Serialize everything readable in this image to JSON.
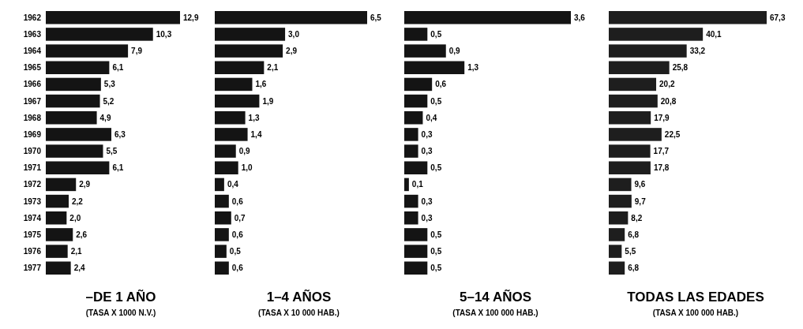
{
  "chart_data": [
    {
      "type": "bar",
      "orientation": "horizontal",
      "title": "–DE 1 AÑO",
      "subtitle": "(TASA X 1000 N.V.)",
      "tick_labels": "y",
      "categories": [
        "1962",
        "1963",
        "1964",
        "1965",
        "1966",
        "1967",
        "1968",
        "1969",
        "1970",
        "1971",
        "1972",
        "1973",
        "1974",
        "1975",
        "1976",
        "1977"
      ],
      "color": "#141414",
      "values": [
        12.9,
        10.3,
        7.9,
        6.1,
        5.3,
        5.2,
        4.9,
        6.3,
        5.5,
        6.1,
        2.9,
        2.2,
        2.0,
        2.6,
        2.1,
        2.4
      ],
      "value_labels": [
        "12,9",
        "10,3",
        "7,9",
        "6,1",
        "5,3",
        "5,2",
        "4,9",
        "6,3",
        "5,5",
        "6,1",
        "2,9",
        "2,2",
        "2,0",
        "2,6",
        "2,1",
        "2,4"
      ]
    },
    {
      "type": "bar",
      "orientation": "horizontal",
      "title": "1–4 AÑOS",
      "subtitle": "(TASA X 10 000 HAB.)",
      "tick_labels": false,
      "categories": [
        null,
        null,
        null,
        null,
        null,
        null,
        null,
        null,
        null,
        null,
        null,
        null,
        null,
        null,
        null,
        null
      ],
      "color": "#141414",
      "values": [
        6.5,
        3.0,
        2.9,
        2.1,
        1.6,
        1.9,
        1.3,
        1.4,
        0.9,
        1.0,
        0.4,
        0.6,
        0.7,
        0.6,
        0.5,
        0.6
      ],
      "value_labels": [
        "6,5",
        "3,0",
        "2,9",
        "2,1",
        "1,6",
        "1,9",
        "1,3",
        "1,4",
        "0,9",
        "1,0",
        "0,4",
        "0,6",
        "0,7",
        "0,6",
        "0,5",
        "0,6"
      ]
    },
    {
      "type": "bar",
      "orientation": "horizontal",
      "title": "5–14 AÑOS",
      "subtitle": "(TASA X 100 000 HAB.)",
      "tick_labels": false,
      "categories": [
        null,
        null,
        null,
        null,
        null,
        null,
        null,
        null,
        null,
        null,
        null,
        null,
        null,
        null,
        null,
        null
      ],
      "color": "#141414",
      "values": [
        3.6,
        0.5,
        0.9,
        1.3,
        0.6,
        0.5,
        0.4,
        0.3,
        0.3,
        0.5,
        0.1,
        0.3,
        0.3,
        0.5,
        0.5,
        0.5
      ],
      "value_labels": [
        "3,6",
        "0,5",
        "0,9",
        "1,3",
        "0,6",
        "0,5",
        "0,4",
        "0,3",
        "0,3",
        "0,5",
        "0,1",
        "0,3",
        "0,3",
        "0,5",
        "0,5",
        "0,5"
      ]
    },
    {
      "type": "bar",
      "orientation": "horizontal",
      "title": "TODAS LAS EDADES",
      "subtitle": "(TASA X 100 000 HAB.)",
      "tick_labels": false,
      "categories": [
        null,
        null,
        null,
        null,
        null,
        null,
        null,
        null,
        null,
        null,
        null,
        null,
        null,
        null,
        null,
        null
      ],
      "color": "#1e1e1e",
      "values": [
        67.3,
        40.1,
        33.2,
        25.8,
        20.2,
        20.8,
        17.9,
        22.5,
        17.7,
        17.8,
        9.6,
        9.7,
        8.2,
        6.8,
        5.5,
        6.8
      ],
      "value_labels": [
        "67,3",
        "40,1",
        "33,2",
        "25,8",
        "20,2",
        "20,8",
        "17,9",
        "22,5",
        "17,7",
        "17,8",
        "9,6",
        "9,7",
        "8,2",
        "6,8",
        "5,5",
        "6,8"
      ]
    }
  ]
}
